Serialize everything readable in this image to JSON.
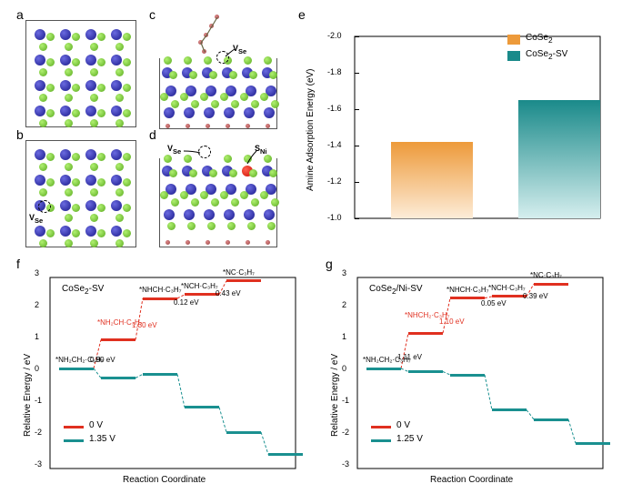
{
  "labels": {
    "a": "a",
    "b": "b",
    "c": "c",
    "d": "d",
    "e": "e",
    "f": "f",
    "g": "g"
  },
  "vacancy": {
    "vse": "V",
    "vse_sub": "Se",
    "sni": "S",
    "sni_sub": "Ni"
  },
  "panel_e": {
    "ylabel": "Amine Adsorption Energy (eV)",
    "ylim": [
      -2.0,
      -1.0
    ],
    "ytick_step": 0.2,
    "bars": [
      {
        "label": "CoSe",
        "sub": "2",
        "value": -1.42,
        "fill_top": "#ed9a3a",
        "fill_bot": "#fdecd8"
      },
      {
        "label": "CoSe",
        "sub": "2",
        "suffix": "-SV",
        "value": -1.65,
        "fill_top": "#1a8a8a",
        "fill_bot": "#d5eeee"
      }
    ],
    "legend_colors": [
      "#ed9a3a",
      "#1a8a8a"
    ],
    "axis_fontsize": 10
  },
  "panel_f": {
    "title": "CoSe",
    "title_sub": "2",
    "title_suffix": "-SV",
    "ylabel": "Relative Energy / eV",
    "xlabel": "Reaction Coordinate",
    "ylim": [
      -3,
      3
    ],
    "ytick_step": 1,
    "series_labels": {
      "red": "0 V",
      "teal": "1.35 V"
    },
    "species": [
      "*NH",
      "*NH",
      "*NHCH·C",
      "*NCH·C",
      "*NC·C"
    ],
    "species_full": [
      "*NH₂CH₂·C₃H₇",
      "*NH₂CH·C₃H₇",
      "*NHCH·C₃H₇",
      "*NCH·C₃H₇",
      "*NC·C₃H₇"
    ],
    "ev_annot": [
      "0.90 eV",
      "1.30 eV",
      "0.12 eV",
      "0.43 eV"
    ],
    "red_y": [
      0,
      0.9,
      2.2,
      2.32,
      2.75
    ],
    "teal_y": [
      0,
      -0.3,
      -0.18,
      -1.22,
      -2.0,
      -2.7
    ],
    "colors": {
      "red": "#e03020",
      "teal": "#1a9090"
    }
  },
  "panel_g": {
    "title": "CoSe",
    "title_sub": "2",
    "title_suffix": "/Ni-SV",
    "ylabel": "Relative Energy / eV",
    "xlabel": "Reaction Coordinate",
    "ylim": [
      -3,
      3
    ],
    "ytick_step": 1,
    "series_labels": {
      "red": "0 V",
      "teal": "1.25 V"
    },
    "species_full": [
      "*NH₂CH₂·C₃H₇",
      "*NHCH₂·C₃H₇",
      "*NHCH·C₃H₇",
      "*NCH·C₃H₇",
      "*NC·C₃H₇"
    ],
    "ev_annot": [
      "1.11 eV",
      "1.10 eV",
      "0.05 eV",
      "0.39 eV"
    ],
    "red_y": [
      0,
      1.11,
      2.21,
      2.26,
      2.65
    ],
    "teal_y": [
      0,
      -0.1,
      -0.2,
      -1.3,
      -1.6,
      -2.35
    ],
    "colors": {
      "red": "#e03020",
      "teal": "#1a9090"
    }
  },
  "colors": {
    "co": "#2a2aa0",
    "se": "#72cc2a",
    "ni": "#dd2200",
    "bg": "#ffffff"
  }
}
